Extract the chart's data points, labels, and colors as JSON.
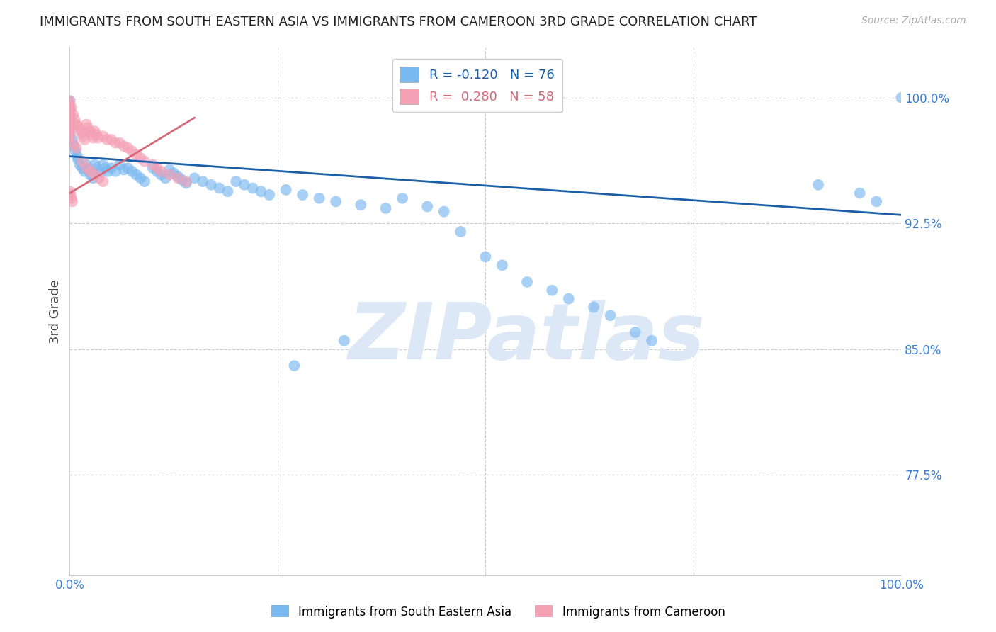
{
  "title": "IMMIGRANTS FROM SOUTH EASTERN ASIA VS IMMIGRANTS FROM CAMEROON 3RD GRADE CORRELATION CHART",
  "source": "Source: ZipAtlas.com",
  "ylabel": "3rd Grade",
  "ytick_labels": [
    "100.0%",
    "92.5%",
    "85.0%",
    "77.5%"
  ],
  "ytick_values": [
    1.0,
    0.925,
    0.85,
    0.775
  ],
  "xlim": [
    0.0,
    1.0
  ],
  "ylim": [
    0.715,
    1.03
  ],
  "series1_color": "#7ab8f0",
  "series2_color": "#f4a0b5",
  "trendline1_color": "#1a5fa8",
  "trendline2_color": "#d4697a",
  "trendline1_x0": 0.0,
  "trendline1_y0": 0.965,
  "trendline1_x1": 1.0,
  "trendline1_y1": 0.93,
  "trendline2_x0": 0.0,
  "trendline2_y0": 0.943,
  "trendline2_x1": 0.15,
  "trendline2_y1": 0.988,
  "watermark": "ZIPatlas",
  "watermark_color": "#dce8f5",
  "legend1_label": "R = -0.120   N = 76",
  "legend2_label": "R =  0.280   N = 58",
  "legend1_color": "#1a5fa8",
  "legend2_color": "#d4697a",
  "blue_x": [
    0.0,
    0.0,
    0.0,
    0.0,
    0.0,
    0.003,
    0.005,
    0.007,
    0.009,
    0.01,
    0.012,
    0.015,
    0.018,
    0.02,
    0.022,
    0.025,
    0.028,
    0.03,
    0.033,
    0.036,
    0.04,
    0.043,
    0.046,
    0.05,
    0.055,
    0.06,
    0.065,
    0.07,
    0.075,
    0.08,
    0.085,
    0.09,
    0.1,
    0.105,
    0.11,
    0.115,
    0.12,
    0.125,
    0.13,
    0.135,
    0.14,
    0.15,
    0.16,
    0.17,
    0.18,
    0.19,
    0.2,
    0.21,
    0.22,
    0.23,
    0.24,
    0.26,
    0.28,
    0.3,
    0.32,
    0.35,
    0.38,
    0.4,
    0.43,
    0.45,
    0.47,
    0.5,
    0.52,
    0.55,
    0.58,
    0.6,
    0.63,
    0.65,
    0.68,
    0.7,
    0.9,
    0.95,
    0.97,
    1.0,
    0.33,
    0.27
  ],
  "blue_y": [
    0.998,
    0.993,
    0.987,
    0.983,
    0.978,
    0.975,
    0.971,
    0.968,
    0.965,
    0.963,
    0.96,
    0.958,
    0.956,
    0.96,
    0.957,
    0.954,
    0.952,
    0.96,
    0.958,
    0.955,
    0.96,
    0.958,
    0.956,
    0.958,
    0.956,
    0.96,
    0.957,
    0.958,
    0.956,
    0.954,
    0.952,
    0.95,
    0.958,
    0.956,
    0.954,
    0.952,
    0.957,
    0.955,
    0.953,
    0.951,
    0.949,
    0.952,
    0.95,
    0.948,
    0.946,
    0.944,
    0.95,
    0.948,
    0.946,
    0.944,
    0.942,
    0.945,
    0.942,
    0.94,
    0.938,
    0.936,
    0.934,
    0.94,
    0.935,
    0.932,
    0.92,
    0.905,
    0.9,
    0.89,
    0.885,
    0.88,
    0.875,
    0.87,
    0.86,
    0.855,
    0.948,
    0.943,
    0.938,
    1.0,
    0.855,
    0.84
  ],
  "pink_x": [
    0.0,
    0.0,
    0.0,
    0.0,
    0.0,
    0.0,
    0.0,
    0.0,
    0.0,
    0.0,
    0.0,
    0.0,
    0.002,
    0.004,
    0.006,
    0.008,
    0.01,
    0.012,
    0.014,
    0.016,
    0.018,
    0.02,
    0.022,
    0.024,
    0.026,
    0.028,
    0.03,
    0.032,
    0.034,
    0.04,
    0.045,
    0.05,
    0.055,
    0.06,
    0.065,
    0.07,
    0.075,
    0.08,
    0.085,
    0.09,
    0.1,
    0.105,
    0.11,
    0.12,
    0.13,
    0.14,
    0.02,
    0.03,
    0.04,
    0.025,
    0.035,
    0.015,
    0.008,
    0.005,
    0.0,
    0.001,
    0.002,
    0.003
  ],
  "pink_y": [
    0.998,
    0.996,
    0.994,
    0.992,
    0.99,
    0.988,
    0.986,
    0.984,
    0.982,
    0.98,
    0.978,
    0.976,
    0.994,
    0.99,
    0.987,
    0.984,
    0.983,
    0.981,
    0.979,
    0.977,
    0.975,
    0.984,
    0.982,
    0.98,
    0.978,
    0.976,
    0.98,
    0.978,
    0.976,
    0.977,
    0.975,
    0.975,
    0.973,
    0.973,
    0.971,
    0.97,
    0.968,
    0.966,
    0.964,
    0.962,
    0.96,
    0.958,
    0.956,
    0.954,
    0.952,
    0.95,
    0.958,
    0.954,
    0.95,
    0.956,
    0.952,
    0.962,
    0.97,
    0.972,
    0.944,
    0.942,
    0.94,
    0.938
  ]
}
